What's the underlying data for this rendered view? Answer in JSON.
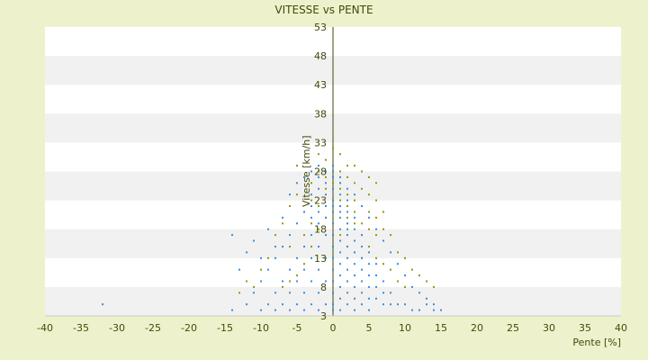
{
  "chart_data": {
    "type": "scatter",
    "title": "VITESSE vs PENTE",
    "xlabel": "Pente [%]",
    "ylabel": "Vitesse [km/h]",
    "xlim": [
      -40,
      40
    ],
    "ylim": [
      3,
      53
    ],
    "x_ticks": [
      "-40",
      "-35",
      "-30",
      "-25",
      "-20",
      "-15",
      "-10",
      "-5",
      "0",
      "5",
      "10",
      "15",
      "20",
      "25",
      "30",
      "35",
      "40"
    ],
    "y_ticks": [
      "3",
      "8",
      "13",
      "18",
      "23",
      "28",
      "33",
      "38",
      "43",
      "48",
      "53"
    ],
    "grid": "alternating horizontal bands",
    "colors": {
      "background": "#eef2cc",
      "band_light": "#ffffff",
      "band_dark": "#f1f1f1",
      "series_blue": "#3a8fd9",
      "series_olive": "#8f9a12",
      "axis": "#3f4a0a"
    },
    "series": [
      {
        "color": "#8f9a12",
        "points": [
          [
            -5,
            29
          ],
          [
            -4,
            27
          ],
          [
            -3,
            26
          ],
          [
            -2,
            28
          ],
          [
            -2,
            31
          ],
          [
            -1,
            30
          ],
          [
            -1,
            25
          ],
          [
            0,
            32
          ],
          [
            0,
            29
          ],
          [
            1,
            28
          ],
          [
            1,
            26
          ],
          [
            1,
            31
          ],
          [
            2,
            27
          ],
          [
            2,
            24
          ],
          [
            2,
            22
          ],
          [
            3,
            26
          ],
          [
            3,
            23
          ],
          [
            3,
            21
          ],
          [
            4,
            25
          ],
          [
            4,
            22
          ],
          [
            4,
            19
          ],
          [
            5,
            24
          ],
          [
            5,
            21
          ],
          [
            5,
            18
          ],
          [
            6,
            23
          ],
          [
            6,
            20
          ],
          [
            6,
            17
          ],
          [
            7,
            21
          ],
          [
            7,
            18
          ],
          [
            -6,
            22
          ],
          [
            -5,
            24
          ],
          [
            -4,
            21
          ],
          [
            -3,
            23
          ],
          [
            -7,
            19
          ],
          [
            -8,
            17
          ],
          [
            -6,
            15
          ],
          [
            -9,
            13
          ],
          [
            -10,
            11
          ],
          [
            -11,
            8
          ],
          [
            8,
            17
          ],
          [
            9,
            14
          ],
          [
            10,
            13
          ],
          [
            11,
            11
          ],
          [
            12,
            10
          ],
          [
            13,
            9
          ],
          [
            14,
            8
          ],
          [
            -12,
            9
          ],
          [
            -13,
            7
          ],
          [
            -3,
            15
          ],
          [
            -2,
            18
          ],
          [
            0,
            21
          ],
          [
            1,
            23
          ],
          [
            2,
            20
          ],
          [
            3,
            19
          ],
          [
            4,
            17
          ],
          [
            5,
            15
          ],
          [
            6,
            13
          ],
          [
            7,
            12
          ],
          [
            8,
            11
          ],
          [
            9,
            9
          ],
          [
            10,
            8
          ],
          [
            -4,
            12
          ],
          [
            -5,
            10
          ],
          [
            -6,
            9
          ],
          [
            -7,
            8
          ],
          [
            1,
            17
          ],
          [
            2,
            15
          ],
          [
            3,
            14
          ],
          [
            4,
            13
          ],
          [
            -1,
            20
          ],
          [
            -2,
            22
          ],
          [
            0,
            26
          ],
          [
            1,
            25
          ],
          [
            2,
            29
          ],
          [
            -1,
            27
          ],
          [
            -3,
            19
          ],
          [
            -4,
            17
          ],
          [
            6,
            26
          ],
          [
            5,
            27
          ],
          [
            4,
            28
          ],
          [
            3,
            29
          ]
        ]
      },
      {
        "color": "#3a8fd9",
        "points": [
          [
            0,
            29
          ],
          [
            -1,
            28
          ],
          [
            -1,
            26
          ],
          [
            0,
            27
          ],
          [
            1,
            27
          ],
          [
            -2,
            27
          ],
          [
            -2,
            25
          ],
          [
            0,
            25
          ],
          [
            1,
            24
          ],
          [
            2,
            23
          ],
          [
            -3,
            24
          ],
          [
            -3,
            22
          ],
          [
            0,
            23
          ],
          [
            1,
            22
          ],
          [
            2,
            21
          ],
          [
            3,
            20
          ],
          [
            -4,
            21
          ],
          [
            -1,
            22
          ],
          [
            0,
            21
          ],
          [
            1,
            20
          ],
          [
            2,
            19
          ],
          [
            3,
            18
          ],
          [
            4,
            17
          ],
          [
            -5,
            19
          ],
          [
            -2,
            19
          ],
          [
            0,
            19
          ],
          [
            1,
            18
          ],
          [
            2,
            17
          ],
          [
            3,
            16
          ],
          [
            4,
            15
          ],
          [
            5,
            14
          ],
          [
            -6,
            17
          ],
          [
            -3,
            17
          ],
          [
            -1,
            17
          ],
          [
            0,
            17
          ],
          [
            1,
            16
          ],
          [
            2,
            15
          ],
          [
            3,
            14
          ],
          [
            4,
            13
          ],
          [
            5,
            12
          ],
          [
            6,
            12
          ],
          [
            -7,
            15
          ],
          [
            -4,
            15
          ],
          [
            -2,
            15
          ],
          [
            0,
            15
          ],
          [
            1,
            14
          ],
          [
            2,
            13
          ],
          [
            3,
            12
          ],
          [
            4,
            11
          ],
          [
            5,
            10
          ],
          [
            6,
            10
          ],
          [
            7,
            9
          ],
          [
            -8,
            13
          ],
          [
            -5,
            13
          ],
          [
            -3,
            13
          ],
          [
            -1,
            13
          ],
          [
            0,
            13
          ],
          [
            1,
            12
          ],
          [
            2,
            11
          ],
          [
            3,
            10
          ],
          [
            4,
            9
          ],
          [
            5,
            8
          ],
          [
            6,
            8
          ],
          [
            7,
            7
          ],
          [
            8,
            7
          ],
          [
            -9,
            11
          ],
          [
            -6,
            11
          ],
          [
            -4,
            11
          ],
          [
            -2,
            11
          ],
          [
            0,
            11
          ],
          [
            1,
            10
          ],
          [
            2,
            9
          ],
          [
            3,
            8
          ],
          [
            4,
            7
          ],
          [
            5,
            6
          ],
          [
            6,
            6
          ],
          [
            7,
            5
          ],
          [
            8,
            5
          ],
          [
            9,
            5
          ],
          [
            -10,
            9
          ],
          [
            -7,
            9
          ],
          [
            -5,
            9
          ],
          [
            -3,
            9
          ],
          [
            -1,
            9
          ],
          [
            0,
            9
          ],
          [
            1,
            8
          ],
          [
            2,
            7
          ],
          [
            3,
            6
          ],
          [
            4,
            5
          ],
          [
            5,
            4
          ],
          [
            10,
            5
          ],
          [
            11,
            4
          ],
          [
            -11,
            7
          ],
          [
            -8,
            7
          ],
          [
            -6,
            7
          ],
          [
            -4,
            7
          ],
          [
            -2,
            7
          ],
          [
            0,
            7
          ],
          [
            1,
            6
          ],
          [
            2,
            5
          ],
          [
            3,
            4
          ],
          [
            12,
            4
          ],
          [
            13,
            5
          ],
          [
            -12,
            5
          ],
          [
            -9,
            5
          ],
          [
            -7,
            5
          ],
          [
            -5,
            5
          ],
          [
            -3,
            5
          ],
          [
            -1,
            5
          ],
          [
            0,
            5
          ],
          [
            1,
            4
          ],
          [
            14,
            4
          ],
          [
            15,
            4
          ],
          [
            -14,
            4
          ],
          [
            -10,
            4
          ],
          [
            -8,
            4
          ],
          [
            -6,
            4
          ],
          [
            -4,
            4
          ],
          [
            -2,
            4
          ],
          [
            0,
            4
          ],
          [
            -32,
            5
          ],
          [
            -14,
            17
          ],
          [
            -13,
            11
          ],
          [
            -12,
            14
          ],
          [
            -11,
            16
          ],
          [
            -10,
            13
          ],
          [
            -9,
            18
          ],
          [
            -8,
            15
          ],
          [
            -7,
            20
          ],
          [
            -6,
            24
          ],
          [
            -5,
            26
          ],
          [
            -4,
            27
          ],
          [
            -3,
            28
          ],
          [
            -2,
            29
          ],
          [
            -1,
            24
          ],
          [
            0,
            28
          ],
          [
            1,
            26
          ],
          [
            2,
            25
          ],
          [
            3,
            24
          ],
          [
            4,
            22
          ],
          [
            5,
            20
          ],
          [
            6,
            18
          ],
          [
            7,
            16
          ],
          [
            8,
            14
          ],
          [
            9,
            12
          ],
          [
            10,
            10
          ],
          [
            11,
            8
          ],
          [
            12,
            7
          ],
          [
            13,
            6
          ],
          [
            14,
            5
          ],
          [
            -1,
            20
          ],
          [
            1,
            21
          ],
          [
            0,
            22
          ],
          [
            -2,
            21
          ],
          [
            2,
            18
          ],
          [
            -3,
            20
          ]
        ]
      }
    ]
  }
}
